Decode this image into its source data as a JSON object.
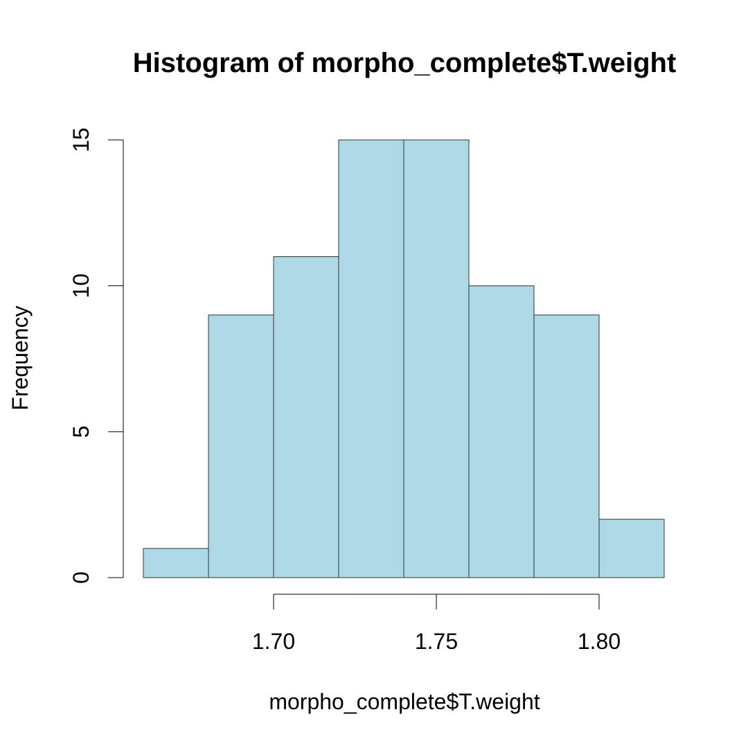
{
  "chart_data": {
    "type": "bar",
    "title": "Histogram of morpho_complete$T.weight",
    "xlabel": "morpho_complete$T.weight",
    "ylabel": "Frequency",
    "bins": [
      {
        "start": 1.66,
        "end": 1.68,
        "count": 1
      },
      {
        "start": 1.68,
        "end": 1.7,
        "count": 9
      },
      {
        "start": 1.7,
        "end": 1.72,
        "count": 11
      },
      {
        "start": 1.72,
        "end": 1.74,
        "count": 15
      },
      {
        "start": 1.74,
        "end": 1.76,
        "count": 15
      },
      {
        "start": 1.76,
        "end": 1.78,
        "count": 10
      },
      {
        "start": 1.78,
        "end": 1.8,
        "count": 9
      },
      {
        "start": 1.8,
        "end": 1.82,
        "count": 2
      }
    ],
    "xticks": [
      1.7,
      1.75,
      1.8
    ],
    "xtick_labels": [
      "1.70",
      "1.75",
      "1.80"
    ],
    "yticks": [
      0,
      5,
      10,
      15
    ],
    "ytick_labels": [
      "0",
      "5",
      "10",
      "15"
    ],
    "xlim": [
      1.66,
      1.82
    ],
    "ylim": [
      0,
      15
    ],
    "grid": false,
    "bar_color": "#add8e6",
    "edge_color": "#333333"
  }
}
